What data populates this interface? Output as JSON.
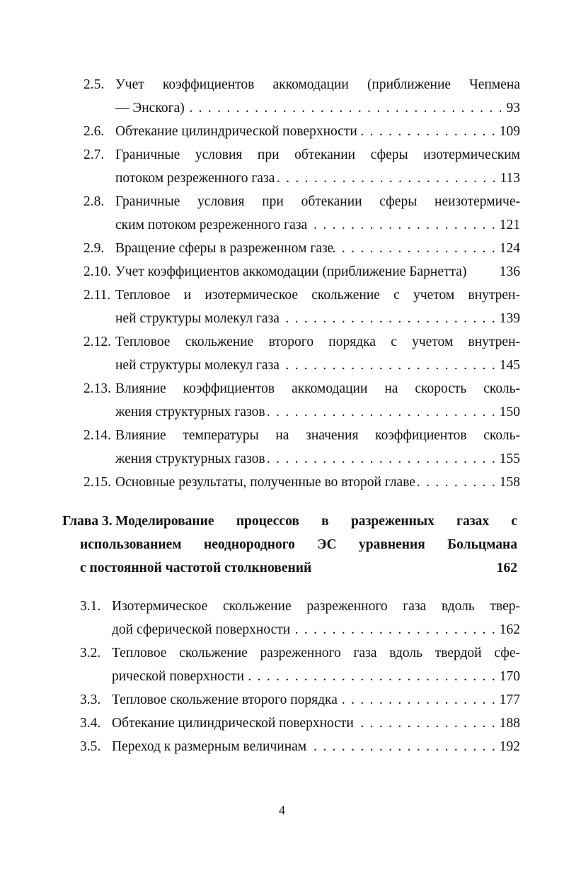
{
  "toc": [
    {
      "kind": "sec",
      "num": "2.5.",
      "lines": [
        "Учет коэффициентов аккомодации (приближение Чепмена",
        "— Энскога)"
      ],
      "page": "93",
      "dots": true
    },
    {
      "kind": "sec",
      "num": "2.6.",
      "lines": [
        "Обтекание цилиндрической поверхности"
      ],
      "page": "109",
      "dots": true
    },
    {
      "kind": "sec",
      "num": "2.7.",
      "lines": [
        "Граничные условия при обтекании сферы изотермическим",
        "потоком резреженного газа"
      ],
      "page": "113",
      "dots": true
    },
    {
      "kind": "sec",
      "num": "2.8.",
      "lines": [
        "Граничные условия при обтекании сферы неизотермиче-",
        "ским потоком резреженного газа"
      ],
      "page": "121",
      "dots": true
    },
    {
      "kind": "sec",
      "num": "2.9.",
      "lines": [
        "Вращение сферы в разреженном газе"
      ],
      "page": "124",
      "dots": true
    },
    {
      "kind": "sec",
      "num": "2.10.",
      "lines": [
        "Учет коэффициентов аккомодации (приближение Барнетта)"
      ],
      "page": "136",
      "dots": false
    },
    {
      "kind": "sec",
      "num": "2.11.",
      "lines": [
        "Тепловое и изотермическое скольжение с учетом внутрен-",
        "ней структуры молекул газа"
      ],
      "page": "139",
      "dots": true
    },
    {
      "kind": "sec",
      "num": "2.12.",
      "lines": [
        "Тепловое скольжение второго порядка с учетом внутрен-",
        "ней структуры молекул газа"
      ],
      "page": "145",
      "dots": true
    },
    {
      "kind": "sec",
      "num": "2.13.",
      "lines": [
        "Влияние коэффициентов аккомодации на скорость сколь-",
        "жения структурных газов"
      ],
      "page": "150",
      "dots": true
    },
    {
      "kind": "sec",
      "num": "2.14.",
      "lines": [
        "Влияние температуры на значения коэффициентов сколь-",
        "жения структурных газов"
      ],
      "page": "155",
      "dots": true
    },
    {
      "kind": "sec",
      "num": "2.15.",
      "lines": [
        "Основные результаты, полученные во второй главе"
      ],
      "page": "158",
      "dots": true
    },
    {
      "kind": "chap",
      "num": "Глава 3.",
      "lines": [
        "Моделирование процессов в разреженных газах с",
        "использованием неоднородного ЭС уравнения Больцмана",
        "с постоянной частотой столкновений"
      ],
      "page": "162",
      "dots": false
    },
    {
      "kind": "sec3",
      "num": "3.1.",
      "lines": [
        "Изотермическое скольжение разреженного газа вдоль твер-",
        "дой сферической поверхности"
      ],
      "page": "162",
      "dots": true
    },
    {
      "kind": "sec3",
      "num": "3.2.",
      "lines": [
        "Тепловое скольжение разреженного газа вдоль твердой сфе-",
        "рической поверхности"
      ],
      "page": "170",
      "dots": true
    },
    {
      "kind": "sec3",
      "num": "3.3.",
      "lines": [
        "Тепловое скольжение второго порядка"
      ],
      "page": "177",
      "dots": true
    },
    {
      "kind": "sec3",
      "num": "3.4.",
      "lines": [
        "Обтекание цилиндрической поверхности"
      ],
      "page": "188",
      "dots": true
    },
    {
      "kind": "sec3",
      "num": "3.5.",
      "lines": [
        "Переход к размерным величинам"
      ],
      "page": "192",
      "dots": true
    }
  ],
  "page_number": "4"
}
